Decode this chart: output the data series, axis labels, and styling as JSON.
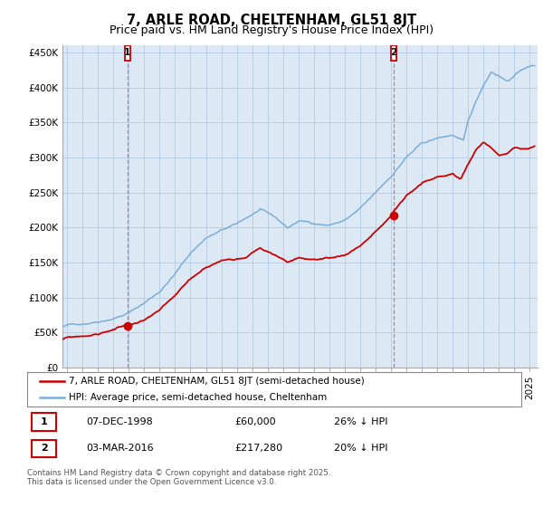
{
  "title": "7, ARLE ROAD, CHELTENHAM, GL51 8JT",
  "subtitle": "Price paid vs. HM Land Registry's House Price Index (HPI)",
  "ylim": [
    0,
    460000
  ],
  "yticks": [
    0,
    50000,
    100000,
    150000,
    200000,
    250000,
    300000,
    350000,
    400000,
    450000
  ],
  "ytick_labels": [
    "£0",
    "£50K",
    "£100K",
    "£150K",
    "£200K",
    "£250K",
    "£300K",
    "£350K",
    "£400K",
    "£450K"
  ],
  "xlim_start": 1994.7,
  "xlim_end": 2025.5,
  "hpi_color": "#7aadda",
  "property_color": "#cc0000",
  "chart_bg": "#dce9f5",
  "marker1_date": 1998.92,
  "marker1_value": 60000,
  "marker2_date": 2016.17,
  "marker2_value": 217280,
  "legend_property": "7, ARLE ROAD, CHELTENHAM, GL51 8JT (semi-detached house)",
  "legend_hpi": "HPI: Average price, semi-detached house, Cheltenham",
  "footer": "Contains HM Land Registry data © Crown copyright and database right 2025.\nThis data is licensed under the Open Government Licence v3.0.",
  "background_color": "#ffffff",
  "grid_color": "#b8cfe8",
  "title_fontsize": 10.5,
  "subtitle_fontsize": 9,
  "tick_fontsize": 7.5
}
